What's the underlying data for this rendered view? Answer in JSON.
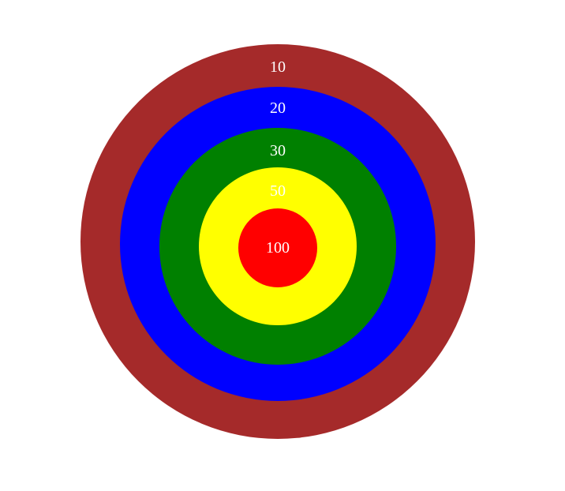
{
  "target": {
    "rings": [
      {
        "points": "10",
        "color": "#A52A2A"
      },
      {
        "points": "20",
        "color": "#0000FF"
      },
      {
        "points": "30",
        "color": "#008000"
      },
      {
        "points": "50",
        "color": "#FFFF00"
      },
      {
        "points": "100",
        "color": "#FF0000"
      }
    ],
    "label_color": "#FFFFFF"
  }
}
